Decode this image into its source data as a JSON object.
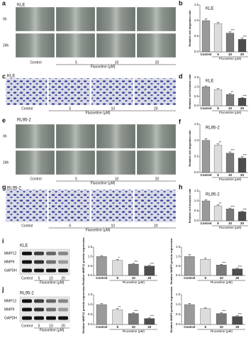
{
  "panel_labels": [
    "a",
    "b",
    "c",
    "d",
    "e",
    "f",
    "g",
    "h",
    "i",
    "j"
  ],
  "images": [
    {
      "title": "KLE",
      "rows": [
        "0h",
        "24h"
      ],
      "columns": [
        "Control",
        "5",
        "10",
        "20"
      ],
      "axis_label": "Fluoxetine (μM)"
    },
    {
      "title": "KLE",
      "columns": [
        "Control",
        "5",
        "10",
        "20"
      ],
      "axis_label": "Fluoxetine (μM)"
    },
    {
      "title": "RL95-2",
      "rows": [
        "0h",
        "24h"
      ],
      "columns": [
        "Control",
        "5",
        "10",
        "20"
      ],
      "axis_label": "Fluoxetine (μM)"
    },
    {
      "title": "RL95-2",
      "columns": [
        "Control",
        "5",
        "10",
        "20"
      ],
      "axis_label": "Fluoxetine (μM)"
    }
  ],
  "blots": [
    {
      "title": "KLE",
      "bands": [
        "MMP12",
        "MMP9",
        "GAPDH"
      ],
      "columns": [
        "Control",
        "5",
        "10",
        "20"
      ],
      "axis_label": "Fluoxetine (μM)"
    },
    {
      "title": "RL95-2",
      "bands": [
        "MMP12",
        "MMP9",
        "GAPDH"
      ],
      "columns": [
        "Control",
        "5",
        "10",
        "20"
      ],
      "axis_label": "Fluoxetine (μM)"
    }
  ],
  "chart_data": [
    {
      "type": "bar",
      "title": "KLE",
      "y_label": "Relative cell migration rate",
      "x_label": "Fluoxetine (μM)",
      "categories": [
        "Control",
        "5",
        "10",
        "20"
      ],
      "values": [
        1.0,
        0.9,
        0.6,
        0.4
      ],
      "errors": [
        0.05,
        0.04,
        0.04,
        0.04
      ],
      "annotations": [
        null,
        null,
        "***",
        "***"
      ],
      "colors": [
        "#9a9a9a",
        "#dcdcdc",
        "#7a7a7a",
        "#4d4d4d"
      ],
      "ylim": [
        0,
        1.5
      ],
      "yticks": [
        {
          "value": 0,
          "label": "0.0"
        },
        {
          "value": 0.5,
          "label": "0.5"
        },
        {
          "value": 1,
          "label": "1.0"
        },
        {
          "value": 1.5,
          "label": "1.5"
        }
      ]
    },
    {
      "type": "bar",
      "title": "KLE",
      "y_label": "Relative cell invasive rate",
      "x_label": "Fluoxetine (μM)",
      "categories": [
        "Control",
        "5",
        "10",
        "20"
      ],
      "values": [
        1.0,
        0.85,
        0.6,
        0.4
      ],
      "errors": [
        0.05,
        0.06,
        0.05,
        0.04
      ],
      "annotations": [
        null,
        null,
        "**",
        "***"
      ],
      "colors": [
        "#9a9a9a",
        "#dcdcdc",
        "#7a7a7a",
        "#4d4d4d"
      ],
      "ylim": [
        0,
        1.5
      ],
      "yticks": [
        {
          "value": 0,
          "label": "0.0"
        },
        {
          "value": 0.5,
          "label": "0.5"
        },
        {
          "value": 1,
          "label": "1.0"
        },
        {
          "value": 1.5,
          "label": "1.5"
        }
      ]
    },
    {
      "type": "bar",
      "title": "RL95-2",
      "y_label": "Relative cell migration rate",
      "x_label": "Fluoxetine (μM)",
      "categories": [
        "Control",
        "5",
        "10",
        "20"
      ],
      "values": [
        1.0,
        0.85,
        0.6,
        0.45
      ],
      "errors": [
        0.05,
        0.04,
        0.04,
        0.04
      ],
      "annotations": [
        null,
        "**",
        "***",
        "***"
      ],
      "colors": [
        "#9a9a9a",
        "#dcdcdc",
        "#7a7a7a",
        "#4d4d4d"
      ],
      "ylim": [
        0,
        1.5
      ],
      "yticks": [
        {
          "value": 0,
          "label": "0.0"
        },
        {
          "value": 0.5,
          "label": "0.5"
        },
        {
          "value": 1,
          "label": "1.0"
        },
        {
          "value": 1.5,
          "label": "1.5"
        }
      ]
    },
    {
      "type": "bar",
      "title": "RL95-2",
      "y_label": "Relative cell invasive rate",
      "x_label": "Fluoxetine (μM)",
      "categories": [
        "Control",
        "5",
        "10",
        "20"
      ],
      "values": [
        1.0,
        0.75,
        0.6,
        0.45
      ],
      "errors": [
        0.06,
        0.05,
        0.04,
        0.04
      ],
      "annotations": [
        null,
        "**",
        "***",
        "***"
      ],
      "colors": [
        "#9a9a9a",
        "#dcdcdc",
        "#7a7a7a",
        "#4d4d4d"
      ],
      "ylim": [
        0,
        1.5
      ],
      "yticks": [
        {
          "value": 0,
          "label": "0.0"
        },
        {
          "value": 0.5,
          "label": "0.5"
        },
        {
          "value": 1,
          "label": "1.0"
        },
        {
          "value": 1.5,
          "label": "1.5"
        }
      ]
    },
    {
      "type": "bar",
      "y_label": "Relative MMP12 protein expression",
      "x_label": "Fluoxetine (μM)",
      "categories": [
        "Control",
        "5",
        "10",
        "20"
      ],
      "values": [
        1.0,
        0.8,
        0.6,
        0.5
      ],
      "errors": [
        0.05,
        0.05,
        0.04,
        0.04
      ],
      "annotations": [
        null,
        "*",
        "***",
        "***"
      ],
      "colors": [
        "#9a9a9a",
        "#dcdcdc",
        "#7a7a7a",
        "#4d4d4d"
      ],
      "ylim": [
        0,
        1.5
      ],
      "yticks": [
        {
          "value": 0,
          "label": "0.0"
        },
        {
          "value": 0.5,
          "label": "0.5"
        },
        {
          "value": 1,
          "label": "1.0"
        },
        {
          "value": 1.5,
          "label": "1.5"
        }
      ]
    },
    {
      "type": "bar",
      "y_label": "Relative MMP9 protein expression",
      "x_label": "Fluoxetine (μM)",
      "categories": [
        "Control",
        "5",
        "10",
        "20"
      ],
      "values": [
        1.0,
        0.85,
        0.55,
        0.35
      ],
      "errors": [
        0.1,
        0.07,
        0.04,
        0.04
      ],
      "annotations": [
        null,
        null,
        "***",
        "***"
      ],
      "colors": [
        "#9a9a9a",
        "#dcdcdc",
        "#7a7a7a",
        "#4d4d4d"
      ],
      "ylim": [
        0,
        1.5
      ],
      "yticks": [
        {
          "value": 0,
          "label": "0.0"
        },
        {
          "value": 0.5,
          "label": "0.5"
        },
        {
          "value": 1,
          "label": "1.0"
        },
        {
          "value": 1.5,
          "label": "1.5"
        }
      ]
    },
    {
      "type": "bar",
      "y_label": "Relative MMP12 protein expression",
      "x_label": "Fluoxetine (μM)",
      "categories": [
        "Control",
        "5",
        "10",
        "20"
      ],
      "values": [
        1.0,
        0.75,
        0.55,
        0.3
      ],
      "errors": [
        0.05,
        0.05,
        0.04,
        0.04
      ],
      "annotations": [
        null,
        "**",
        "***",
        "***"
      ],
      "colors": [
        "#9a9a9a",
        "#dcdcdc",
        "#7a7a7a",
        "#4d4d4d"
      ],
      "ylim": [
        0,
        1.5
      ],
      "yticks": [
        {
          "value": 0,
          "label": "0.0"
        },
        {
          "value": 0.5,
          "label": "0.5"
        },
        {
          "value": 1,
          "label": "1.0"
        },
        {
          "value": 1.5,
          "label": "1.5"
        }
      ]
    },
    {
      "type": "bar",
      "y_label": "Relative MMP9 protein expression",
      "x_label": "Fluoxetine (μM)",
      "categories": [
        "Control",
        "5",
        "10",
        "20"
      ],
      "values": [
        1.0,
        0.8,
        0.55,
        0.4
      ],
      "errors": [
        0.06,
        0.05,
        0.04,
        0.04
      ],
      "annotations": [
        null,
        null,
        "***",
        "***"
      ],
      "colors": [
        "#9a9a9a",
        "#dcdcdc",
        "#7a7a7a",
        "#4d4d4d"
      ],
      "ylim": [
        0,
        1.5
      ],
      "yticks": [
        {
          "value": 0,
          "label": "0.0"
        },
        {
          "value": 0.5,
          "label": "0.5"
        },
        {
          "value": 1,
          "label": "1.0"
        },
        {
          "value": 1.5,
          "label": "1.5"
        }
      ]
    }
  ]
}
